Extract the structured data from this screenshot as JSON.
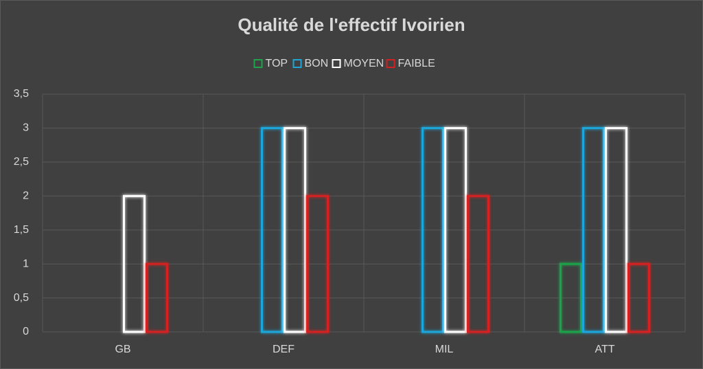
{
  "chart_data": {
    "type": "bar",
    "title": "Qualité de l'effectif Ivoirien",
    "categories": [
      "GB",
      "DEF",
      "MIL",
      "ATT"
    ],
    "series": [
      {
        "name": "TOP",
        "color": "#1fa34a",
        "values": [
          0,
          0,
          0,
          1
        ]
      },
      {
        "name": "BON",
        "color": "#1fa6d9",
        "values": [
          0,
          3,
          3,
          3
        ]
      },
      {
        "name": "MOYEN",
        "color": "#ffffff",
        "values": [
          2,
          3,
          3,
          3
        ]
      },
      {
        "name": "FAIBLE",
        "color": "#d42020",
        "values": [
          1,
          2,
          2,
          1
        ]
      }
    ],
    "ylim": [
      0,
      3.5
    ],
    "yticks": [
      0,
      {
        "value": 0.5,
        "label": "0,5"
      },
      1,
      {
        "value": 1.5,
        "label": "1,5"
      },
      2,
      {
        "value": 2.5,
        "label": "2,5"
      },
      3,
      {
        "value": 3.5,
        "label": "3,5"
      }
    ],
    "grid": true,
    "legend": "top"
  }
}
